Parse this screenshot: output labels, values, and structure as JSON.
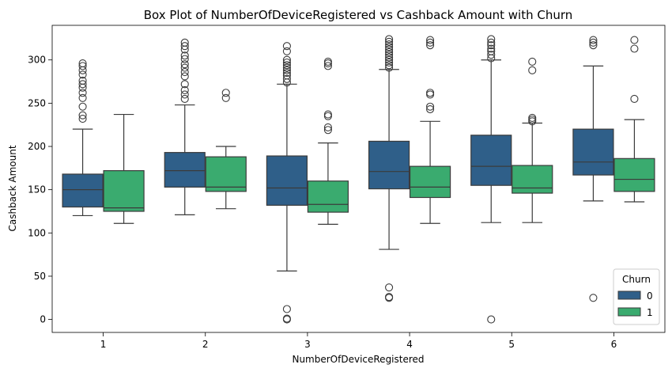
{
  "chart_data": {
    "type": "box",
    "title": "Box Plot of NumberOfDeviceRegistered vs Cashback Amount with Churn",
    "xlabel": "NumberOfDeviceRegistered",
    "ylabel": "Cashback Amount",
    "categories": [
      "1",
      "2",
      "3",
      "4",
      "5",
      "6"
    ],
    "y_ticks": [
      0,
      50,
      100,
      150,
      200,
      250,
      300
    ],
    "ylim": [
      -15,
      340
    ],
    "grid": false,
    "legend": {
      "title": "Churn",
      "placement": "lower-right"
    },
    "series": [
      {
        "name": "0",
        "color": "#2f5f89",
        "boxes": [
          {
            "q1": 130,
            "median": 150,
            "q3": 168,
            "whislo": 120,
            "whishi": 220,
            "fliers": [
              232,
              236,
              246,
              256,
              262,
              268,
              272,
              276,
              283,
              288,
              293,
              296
            ]
          },
          {
            "q1": 153,
            "median": 172,
            "q3": 193,
            "whislo": 121,
            "whishi": 248,
            "fliers": [
              255,
              260,
              265,
              272,
              281,
              286,
              291,
              295,
              301,
              305,
              312,
              316,
              320
            ]
          },
          {
            "q1": 132,
            "median": 152,
            "q3": 189,
            "whislo": 56,
            "whishi": 272,
            "fliers": [
              0,
              1,
              12,
              274,
              278,
              282,
              285,
              288,
              291,
              294,
              297,
              300,
              310,
              316
            ]
          },
          {
            "q1": 151,
            "median": 171,
            "q3": 206,
            "whislo": 81,
            "whishi": 289,
            "fliers": [
              25,
              26,
              37,
              291,
              294,
              297,
              300,
              303,
              306,
              309,
              312,
              315,
              318,
              321,
              324
            ]
          },
          {
            "q1": 155,
            "median": 177,
            "q3": 213,
            "whislo": 112,
            "whishi": 300,
            "fliers": [
              0,
              302,
              306,
              310,
              313,
              317,
              320,
              324
            ]
          },
          {
            "q1": 167,
            "median": 182,
            "q3": 220,
            "whislo": 137,
            "whishi": 293,
            "fliers": [
              25,
              317,
              320,
              323
            ]
          }
        ]
      },
      {
        "name": "1",
        "color": "#3aab6f",
        "boxes": [
          {
            "q1": 125,
            "median": 129,
            "q3": 172,
            "whislo": 111,
            "whishi": 237,
            "fliers": []
          },
          {
            "q1": 148,
            "median": 153,
            "q3": 188,
            "whislo": 128,
            "whishi": 200,
            "fliers": [
              256,
              262
            ]
          },
          {
            "q1": 124,
            "median": 133,
            "q3": 160,
            "whislo": 110,
            "whishi": 204,
            "fliers": [
              219,
              222,
              235,
              237,
              293,
              296,
              298
            ]
          },
          {
            "q1": 141,
            "median": 153,
            "q3": 177,
            "whislo": 111,
            "whishi": 229,
            "fliers": [
              243,
              246,
              260,
              262,
              317,
              320,
              323
            ]
          },
          {
            "q1": 146,
            "median": 152,
            "q3": 178,
            "whislo": 112,
            "whishi": 227,
            "fliers": [
              229,
              231,
              233,
              288,
              298
            ]
          },
          {
            "q1": 148,
            "median": 162,
            "q3": 186,
            "whislo": 136,
            "whishi": 231,
            "fliers": [
              255,
              313,
              323
            ]
          }
        ]
      }
    ]
  }
}
